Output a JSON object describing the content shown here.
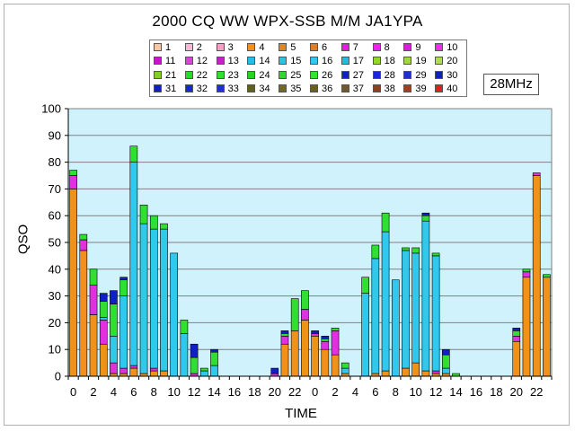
{
  "title": "2000 CQ WW WPX-SSB M/M JA1YPA",
  "band_label": "28MHz",
  "chart_data": {
    "type": "bar",
    "stacked": true,
    "xlabel": "TIME",
    "ylabel": "QSO",
    "ylim": [
      0,
      100
    ],
    "yticks": [
      "0",
      "10",
      "20",
      "30",
      "40",
      "50",
      "60",
      "70",
      "80",
      "90",
      "100"
    ],
    "xtick_labels": [
      "0",
      "2",
      "4",
      "6",
      "8",
      "10",
      "12",
      "14",
      "16",
      "18",
      "20",
      "22",
      "0",
      "2",
      "4",
      "6",
      "8",
      "10",
      "12",
      "14",
      "16",
      "18",
      "20",
      "22"
    ],
    "plot_background": "#d0f2fc",
    "grid": true,
    "legend": [
      {
        "name": "1",
        "color": "#f9c8a0"
      },
      {
        "name": "2",
        "color": "#f8b8d8"
      },
      {
        "name": "3",
        "color": "#f5a0c8"
      },
      {
        "name": "4",
        "color": "#f0921a"
      },
      {
        "name": "5",
        "color": "#e08820"
      },
      {
        "name": "6",
        "color": "#d8802a"
      },
      {
        "name": "7",
        "color": "#e020e0"
      },
      {
        "name": "8",
        "color": "#f020f0"
      },
      {
        "name": "9",
        "color": "#d820d8"
      },
      {
        "name": "10",
        "color": "#e830e8"
      },
      {
        "name": "11",
        "color": "#d010d0"
      },
      {
        "name": "12",
        "color": "#e040e0"
      },
      {
        "name": "13",
        "color": "#c820c8"
      },
      {
        "name": "14",
        "color": "#20c0e8"
      },
      {
        "name": "15",
        "color": "#28c4e8"
      },
      {
        "name": "16",
        "color": "#30c8ec"
      },
      {
        "name": "17",
        "color": "#20bce4"
      },
      {
        "name": "18",
        "color": "#90d830"
      },
      {
        "name": "19",
        "color": "#a0d840"
      },
      {
        "name": "20",
        "color": "#b0dc50"
      },
      {
        "name": "21",
        "color": "#80d020"
      },
      {
        "name": "22",
        "color": "#20e020"
      },
      {
        "name": "23",
        "color": "#30e030"
      },
      {
        "name": "24",
        "color": "#20d820"
      },
      {
        "name": "25",
        "color": "#28dc28"
      },
      {
        "name": "26",
        "color": "#30e430"
      },
      {
        "name": "27",
        "color": "#1020d0"
      },
      {
        "name": "28",
        "color": "#1828d8"
      },
      {
        "name": "29",
        "color": "#2030d0"
      },
      {
        "name": "30",
        "color": "#1020c0"
      },
      {
        "name": "31",
        "color": "#1020c8"
      },
      {
        "name": "32",
        "color": "#1828d0"
      },
      {
        "name": "33",
        "color": "#2030d8"
      },
      {
        "name": "34",
        "color": "#606020"
      },
      {
        "name": "35",
        "color": "#706828"
      },
      {
        "name": "36",
        "color": "#686020"
      },
      {
        "name": "37",
        "color": "#705830"
      },
      {
        "name": "38",
        "color": "#904020"
      },
      {
        "name": "39",
        "color": "#a04020"
      },
      {
        "name": "40",
        "color": "#e02020"
      }
    ],
    "segment_colors": {
      "orange": "#f0921a",
      "magenta": "#e030e0",
      "cyan": "#30c8ec",
      "green": "#30e030",
      "blue": "#1020c8"
    },
    "x": [
      "0",
      "1",
      "2",
      "3",
      "4",
      "5",
      "6",
      "7",
      "8",
      "9",
      "10",
      "11",
      "12",
      "13",
      "14",
      "15",
      "16",
      "17",
      "18",
      "19",
      "20",
      "21",
      "22",
      "23",
      "0",
      "1",
      "2",
      "3",
      "4",
      "5",
      "6",
      "7",
      "8",
      "9",
      "10",
      "11",
      "12",
      "13",
      "14",
      "15",
      "16",
      "17",
      "18",
      "19",
      "20",
      "21",
      "22",
      "23"
    ],
    "series": [
      {
        "key": "orange",
        "values": [
          70,
          47,
          23,
          12,
          1,
          1,
          3,
          1,
          2,
          2,
          0,
          0,
          0,
          0,
          0,
          0,
          0,
          0,
          0,
          0,
          0,
          12,
          17,
          21,
          15,
          10,
          8,
          1,
          0,
          0,
          1,
          2,
          0,
          3,
          5,
          2,
          1,
          1,
          0,
          0,
          0,
          0,
          0,
          0,
          13,
          37,
          75,
          37
        ]
      },
      {
        "key": "magenta",
        "values": [
          5,
          4,
          11,
          9,
          4,
          2,
          1,
          0,
          1,
          0,
          0,
          0,
          1,
          0,
          0,
          0,
          0,
          0,
          0,
          0,
          1,
          3,
          0,
          4,
          1,
          3,
          9,
          0,
          0,
          0,
          0,
          0,
          0,
          0,
          0,
          0,
          1,
          0,
          0,
          0,
          0,
          0,
          0,
          0,
          2,
          2,
          1,
          0
        ]
      },
      {
        "key": "cyan",
        "values": [
          0,
          0,
          0,
          1,
          10,
          27,
          76,
          56,
          52,
          53,
          46,
          16,
          0,
          2,
          4,
          0,
          0,
          0,
          0,
          0,
          0,
          0,
          0,
          0,
          0,
          0,
          0,
          2,
          0,
          31,
          43,
          52,
          36,
          44,
          41,
          56,
          43,
          2,
          0,
          0,
          0,
          0,
          0,
          0,
          0,
          0,
          0,
          0
        ]
      },
      {
        "key": "green",
        "values": [
          2,
          2,
          6,
          6,
          12,
          6,
          6,
          7,
          5,
          2,
          0,
          5,
          6,
          1,
          5,
          0,
          0,
          0,
          0,
          0,
          0,
          1,
          12,
          7,
          0,
          1,
          1,
          2,
          0,
          6,
          5,
          7,
          0,
          1,
          2,
          2,
          1,
          5,
          1,
          0,
          0,
          0,
          0,
          0,
          2,
          1,
          0,
          1
        ]
      },
      {
        "key": "blue",
        "values": [
          0,
          0,
          0,
          3,
          5,
          1,
          0,
          0,
          0,
          0,
          0,
          0,
          5,
          0,
          1,
          0,
          0,
          0,
          0,
          0,
          2,
          1,
          0,
          0,
          1,
          1,
          0,
          0,
          0,
          0,
          0,
          0,
          0,
          0,
          0,
          1,
          0,
          2,
          0,
          0,
          0,
          0,
          0,
          0,
          1,
          0,
          0,
          0
        ]
      }
    ]
  }
}
